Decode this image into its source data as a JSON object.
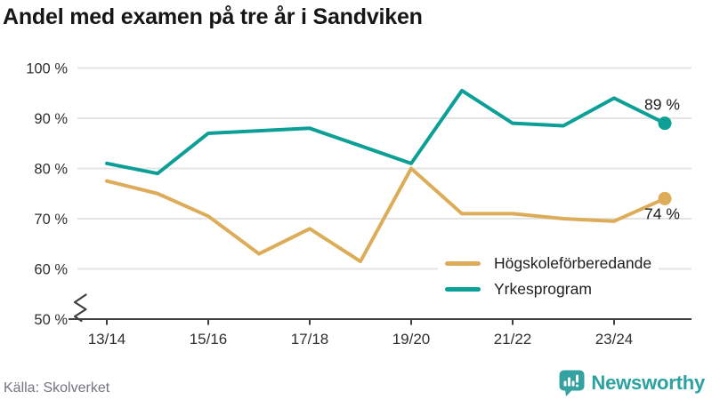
{
  "header": {
    "title": "Andel med examen på tre år i Sandviken"
  },
  "footer": {
    "source": "Källa: Skolverket",
    "logo_text": "Newsworthy"
  },
  "colors": {
    "orange": "#DDAC58",
    "teal": "#0C9F96",
    "grid": "#E4E4E4",
    "axis": "#3F3F3F",
    "tick_text": "#2F2F2F",
    "logo_teal": "#35A2A2"
  },
  "chart_data": {
    "type": "line",
    "title": "Andel med examen på tre år i Sandviken",
    "x": [
      "13/14",
      "14/15",
      "15/16",
      "16/17",
      "17/18",
      "18/19",
      "19/20",
      "20/21",
      "21/22",
      "22/23",
      "23/24",
      "24/25"
    ],
    "x_tick_labels": [
      "13/14",
      "15/16",
      "17/18",
      "19/20",
      "21/22",
      "23/24"
    ],
    "x_tick_indices": [
      0,
      2,
      4,
      6,
      8,
      10
    ],
    "ylim": [
      50,
      100
    ],
    "ytick_values": [
      50,
      60,
      70,
      80,
      90,
      100
    ],
    "ytick_labels": [
      "50 %",
      "60 %",
      "70 %",
      "80 %",
      "90 %",
      "100 %"
    ],
    "grid": true,
    "axis_break": true,
    "legend_position": "inside-bottom-right",
    "series": [
      {
        "id": "hogskoleforberedande",
        "name": "Högskoleförberedande",
        "color": "#DDAC58",
        "values": [
          77.5,
          75,
          70.5,
          63,
          68,
          61.5,
          80,
          71,
          71,
          70,
          69.5,
          74
        ],
        "end_label": "74 %"
      },
      {
        "id": "yrkesprogram",
        "name": "Yrkesprogram",
        "color": "#0C9F96",
        "values": [
          81,
          79,
          87,
          87.5,
          88,
          84.5,
          81,
          95.5,
          89,
          88.5,
          94,
          89
        ],
        "end_label": "89 %"
      }
    ]
  }
}
